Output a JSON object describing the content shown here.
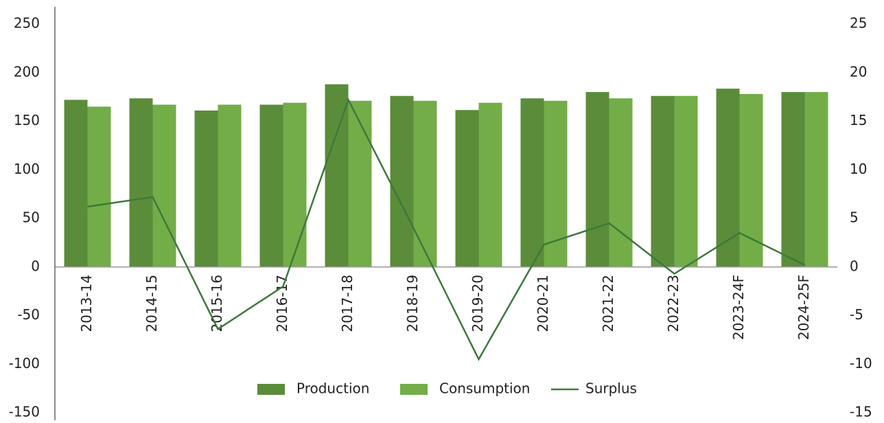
{
  "chart_data": {
    "type": "bar",
    "categories": [
      "2013-14",
      "2014-15",
      "2015-16",
      "2016-17",
      "2017-18",
      "2018-19",
      "2019-20",
      "2020-21",
      "2021-22",
      "2022-23",
      "2023-24F",
      "2024-25F"
    ],
    "series": [
      {
        "name": "Production",
        "color": "#5b8c3a",
        "values": [
          172,
          173.5,
          161,
          167,
          188,
          176,
          161.5,
          173.5,
          180,
          176,
          183.5,
          180
        ]
      },
      {
        "name": "Consumption",
        "color": "#72ad47",
        "values": [
          165,
          167,
          167,
          169,
          171,
          171,
          169,
          171,
          173.5,
          176,
          178,
          180
        ]
      },
      {
        "name": "Surplus",
        "type": "line",
        "axis": "y2",
        "color": "#3d7a3a",
        "values": [
          6.2,
          7.2,
          -6.4,
          -2,
          17.2,
          4,
          -9.5,
          2.3,
          4.5,
          -0.7,
          3.5,
          0.2
        ]
      }
    ],
    "ylim": [
      -150,
      250
    ],
    "yticks": [
      -150,
      -100,
      -50,
      0,
      50,
      100,
      150,
      200,
      250
    ],
    "y2lim": [
      -15,
      25
    ],
    "y2ticks": [
      -15,
      -10,
      -5,
      0,
      5,
      10,
      15,
      20,
      25
    ],
    "legend": "bottom"
  }
}
